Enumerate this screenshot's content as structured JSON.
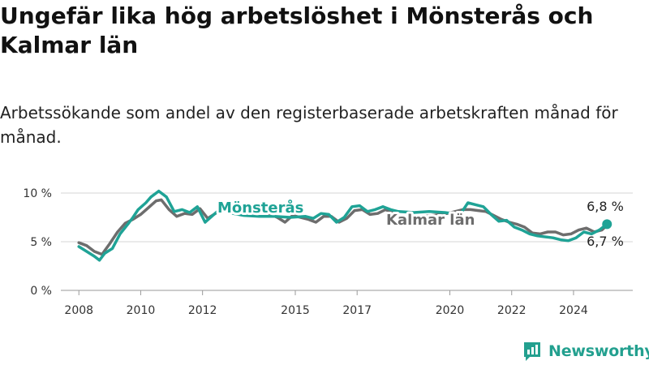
{
  "title": "Ungefär lika hög arbetslöshet i Mönsterås och Kalmar län",
  "subtitle": "Arbetssökande som andel av den registerbaserade arbetskraften månad för månad.",
  "brand": {
    "name": "Newsworthy",
    "icon": "newsworthy-chart-logo-icon"
  },
  "colors": {
    "monsteras": "#1fa396",
    "kalmar": "#6d6d6d",
    "grid": "#d6d6d6",
    "brand": "#23a08f"
  },
  "chart_data": {
    "type": "line",
    "title": "",
    "xlabel": "",
    "ylabel": "",
    "ylim": [
      0,
      10
    ],
    "xlim": [
      "2007-06",
      "2025-12"
    ],
    "grid": true,
    "y_ticks": [
      0,
      5,
      10
    ],
    "y_tick_labels": [
      "0 %",
      "5 %",
      "10 %"
    ],
    "x_ticks": [
      2008,
      2010,
      2012,
      2015,
      2017,
      2020,
      2022,
      2024
    ],
    "x_tick_labels": [
      "2008",
      "2010",
      "2012",
      "2015",
      "2017",
      "2020",
      "2022",
      "2024"
    ],
    "series": [
      {
        "name": "Mönsterås",
        "color": "#1fa396",
        "end_label": "6,8 %",
        "points": [
          [
            "2008-01",
            4.5
          ],
          [
            "2008-04",
            4.0
          ],
          [
            "2008-07",
            3.5
          ],
          [
            "2008-09",
            3.1
          ],
          [
            "2008-11",
            3.8
          ],
          [
            "2009-02",
            4.3
          ],
          [
            "2009-05",
            5.8
          ],
          [
            "2009-08",
            6.8
          ],
          [
            "2009-10",
            7.5
          ],
          [
            "2009-12",
            8.3
          ],
          [
            "2010-03",
            9.0
          ],
          [
            "2010-05",
            9.6
          ],
          [
            "2010-08",
            10.2
          ],
          [
            "2010-11",
            9.6
          ],
          [
            "2011-02",
            8.1
          ],
          [
            "2011-05",
            8.3
          ],
          [
            "2011-08",
            8.0
          ],
          [
            "2011-11",
            8.6
          ],
          [
            "2012-02",
            7.0
          ],
          [
            "2012-05",
            7.7
          ],
          [
            "2012-08",
            8.4
          ],
          [
            "2012-11",
            8.0
          ],
          [
            "2013-05",
            7.7
          ],
          [
            "2013-11",
            7.6
          ],
          [
            "2014-05",
            7.6
          ],
          [
            "2014-11",
            7.5
          ],
          [
            "2015-05",
            7.6
          ],
          [
            "2015-08",
            7.4
          ],
          [
            "2015-11",
            7.9
          ],
          [
            "2016-02",
            7.8
          ],
          [
            "2016-05",
            7.0
          ],
          [
            "2016-08",
            7.5
          ],
          [
            "2016-11",
            8.6
          ],
          [
            "2017-02",
            8.7
          ],
          [
            "2017-05",
            8.1
          ],
          [
            "2017-08",
            8.3
          ],
          [
            "2017-11",
            8.6
          ],
          [
            "2018-02",
            8.3
          ],
          [
            "2018-05",
            8.1
          ],
          [
            "2018-11",
            8.0
          ],
          [
            "2019-05",
            8.1
          ],
          [
            "2019-11",
            8.0
          ],
          [
            "2020-05",
            7.8
          ],
          [
            "2020-08",
            9.0
          ],
          [
            "2020-11",
            8.8
          ],
          [
            "2021-02",
            8.6
          ],
          [
            "2021-05",
            7.8
          ],
          [
            "2021-08",
            7.1
          ],
          [
            "2021-11",
            7.2
          ],
          [
            "2022-02",
            6.5
          ],
          [
            "2022-05",
            6.2
          ],
          [
            "2022-08",
            5.8
          ],
          [
            "2022-11",
            5.6
          ],
          [
            "2023-02",
            5.5
          ],
          [
            "2023-05",
            5.4
          ],
          [
            "2023-08",
            5.2
          ],
          [
            "2023-11",
            5.1
          ],
          [
            "2024-02",
            5.4
          ],
          [
            "2024-05",
            6.0
          ],
          [
            "2024-08",
            5.8
          ],
          [
            "2024-11",
            6.2
          ],
          [
            "2025-02",
            6.8
          ]
        ]
      },
      {
        "name": "Kalmar län",
        "color": "#6d6d6d",
        "end_label": "6,7 %",
        "points": [
          [
            "2008-01",
            4.9
          ],
          [
            "2008-04",
            4.6
          ],
          [
            "2008-07",
            4.0
          ],
          [
            "2008-10",
            3.7
          ],
          [
            "2009-01",
            4.8
          ],
          [
            "2009-04",
            6.0
          ],
          [
            "2009-07",
            6.9
          ],
          [
            "2009-10",
            7.3
          ],
          [
            "2010-01",
            7.8
          ],
          [
            "2010-04",
            8.5
          ],
          [
            "2010-07",
            9.2
          ],
          [
            "2010-09",
            9.3
          ],
          [
            "2010-12",
            8.3
          ],
          [
            "2011-03",
            7.6
          ],
          [
            "2011-06",
            7.9
          ],
          [
            "2011-09",
            7.8
          ],
          [
            "2011-12",
            8.4
          ],
          [
            "2012-03",
            7.4
          ],
          [
            "2012-06",
            7.9
          ],
          [
            "2012-09",
            8.4
          ],
          [
            "2012-12",
            8.6
          ],
          [
            "2013-06",
            8.1
          ],
          [
            "2013-12",
            8.2
          ],
          [
            "2014-06",
            7.5
          ],
          [
            "2014-09",
            7.0
          ],
          [
            "2014-12",
            7.7
          ],
          [
            "2015-06",
            7.3
          ],
          [
            "2015-09",
            7.0
          ],
          [
            "2015-12",
            7.6
          ],
          [
            "2016-03",
            7.6
          ],
          [
            "2016-06",
            7.0
          ],
          [
            "2016-09",
            7.4
          ],
          [
            "2016-12",
            8.2
          ],
          [
            "2017-03",
            8.3
          ],
          [
            "2017-06",
            7.8
          ],
          [
            "2017-09",
            7.9
          ],
          [
            "2017-12",
            8.3
          ],
          [
            "2018-06",
            7.6
          ],
          [
            "2018-12",
            7.5
          ],
          [
            "2019-06",
            7.7
          ],
          [
            "2019-12",
            7.9
          ],
          [
            "2020-06",
            8.3
          ],
          [
            "2020-09",
            8.3
          ],
          [
            "2020-12",
            8.2
          ],
          [
            "2021-03",
            8.1
          ],
          [
            "2021-06",
            7.7
          ],
          [
            "2021-09",
            7.3
          ],
          [
            "2021-12",
            7.0
          ],
          [
            "2022-03",
            6.8
          ],
          [
            "2022-06",
            6.5
          ],
          [
            "2022-09",
            5.9
          ],
          [
            "2022-12",
            5.8
          ],
          [
            "2023-03",
            6.0
          ],
          [
            "2023-06",
            6.0
          ],
          [
            "2023-09",
            5.7
          ],
          [
            "2023-12",
            5.8
          ],
          [
            "2024-03",
            6.2
          ],
          [
            "2024-06",
            6.4
          ],
          [
            "2024-09",
            6.0
          ],
          [
            "2024-12",
            6.2
          ],
          [
            "2025-02",
            6.7
          ]
        ]
      }
    ]
  }
}
